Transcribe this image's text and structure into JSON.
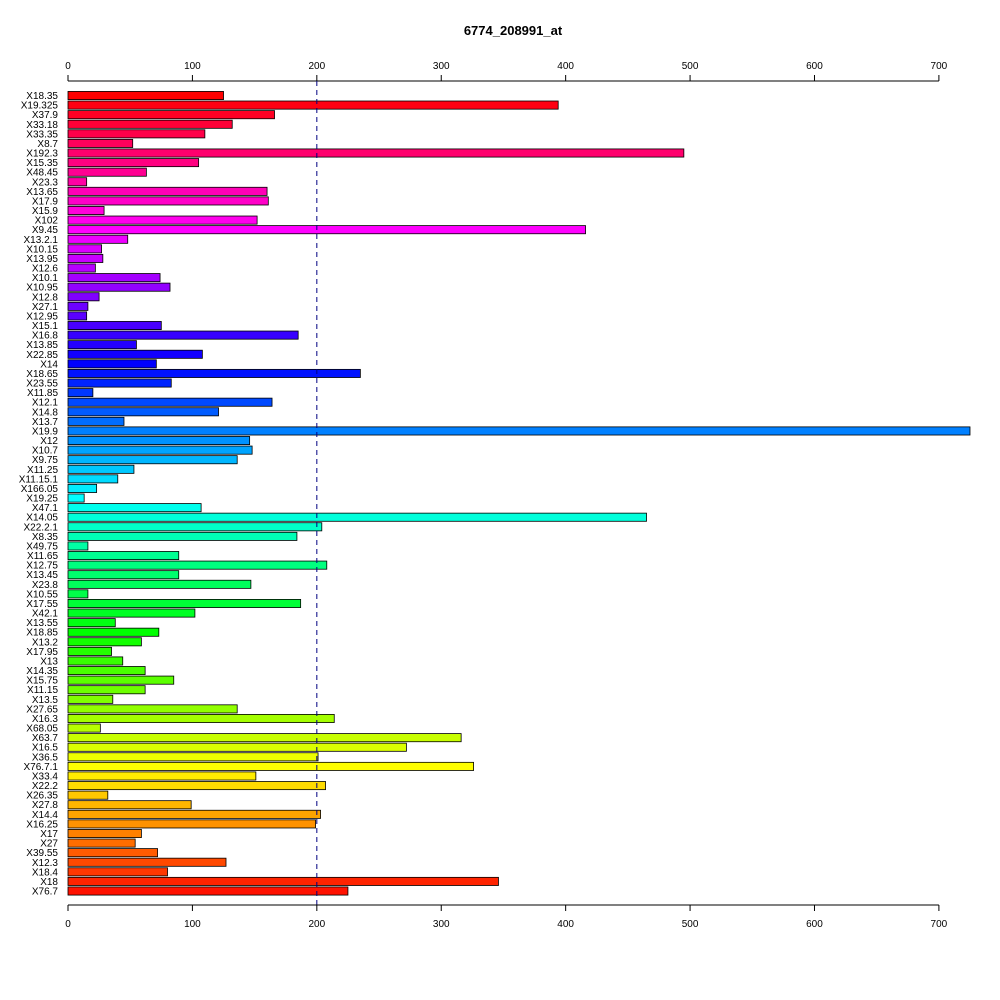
{
  "chart_data": {
    "type": "bar",
    "orientation": "horizontal",
    "title": "6774_208991_at",
    "xlabel": "",
    "ylabel": "",
    "xlim": [
      0,
      725
    ],
    "xticks": [
      0,
      100,
      200,
      300,
      400,
      500,
      600,
      700
    ],
    "reference_line": 200,
    "reference_line_style": "dashed",
    "reference_line_color": "#000080",
    "axes": [
      "top",
      "bottom"
    ],
    "color_scheme": "rainbow",
    "categories": [
      "X18.35",
      "X19.325",
      "X37.9",
      "X33.18",
      "X33.35",
      "X8.7",
      "X192.3",
      "X15.35",
      "X48.45",
      "X23.3",
      "X13.65",
      "X17.9",
      "X15.9",
      "X102",
      "X9.45",
      "X13.2.1",
      "X10.15",
      "X13.95",
      "X12.6",
      "X10.1",
      "X10.95",
      "X12.8",
      "X27.1",
      "X12.95",
      "X15.1",
      "X16.8",
      "X13.85",
      "X22.85",
      "X14",
      "X18.65",
      "X23.55",
      "X11.85",
      "X12.1",
      "X14.8",
      "X13.7",
      "X19.9",
      "X12",
      "X10.7",
      "X9.75",
      "X11.25",
      "X11.15.1",
      "X166.05",
      "X19.25",
      "X47.1",
      "X14.05",
      "X22.2.1",
      "X8.35",
      "X49.75",
      "X11.65",
      "X12.75",
      "X13.45",
      "X23.8",
      "X10.55",
      "X17.55",
      "X42.1",
      "X13.55",
      "X18.85",
      "X13.2",
      "X17.95",
      "X13",
      "X14.35",
      "X15.75",
      "X11.15",
      "X13.5",
      "X27.65",
      "X16.3",
      "X68.05",
      "X63.7",
      "X16.5",
      "X36.5",
      "X76.7.1",
      "X33.4",
      "X22.2",
      "X26.35",
      "X27.8",
      "X14.4",
      "X16.25",
      "X17",
      "X27",
      "X39.55",
      "X12.3",
      "X18.4",
      "X18",
      "X76.7"
    ],
    "values": [
      125,
      394,
      166,
      132,
      110,
      52,
      495,
      105,
      63,
      15,
      160,
      161,
      29,
      152,
      416,
      48,
      27,
      28,
      22,
      74,
      82,
      25,
      16,
      15,
      75,
      185,
      55,
      108,
      71,
      235,
      83,
      20,
      164,
      121,
      45,
      725,
      146,
      148,
      136,
      53,
      40,
      23,
      13,
      107,
      465,
      204,
      184,
      16,
      89,
      208,
      89,
      147,
      16,
      187,
      102,
      38,
      73,
      59,
      35,
      44,
      62,
      85,
      62,
      36,
      136,
      214,
      26,
      316,
      272,
      201,
      326,
      151,
      207,
      32,
      99,
      203,
      199,
      59,
      54,
      72,
      127,
      80,
      346,
      225
    ]
  }
}
